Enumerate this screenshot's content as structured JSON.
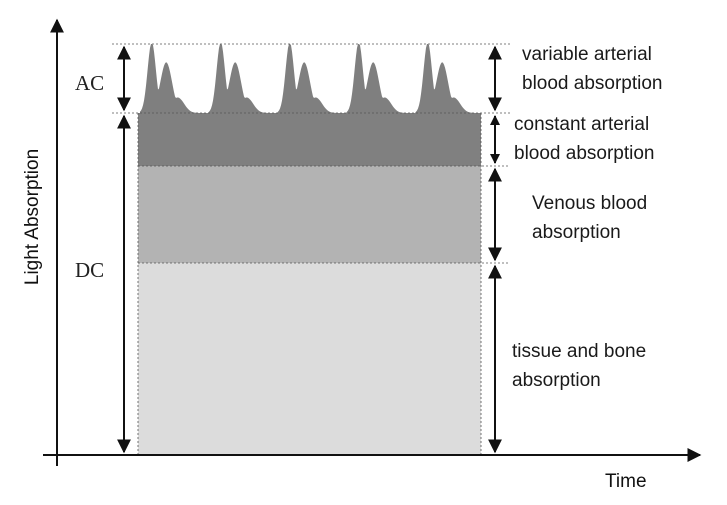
{
  "axes": {
    "y_title": "Light Absorption",
    "x_title": "Time"
  },
  "side_labels": {
    "ac": "AC",
    "dc": "DC"
  },
  "layers": [
    {
      "id": "variable",
      "line1": "variable arterial",
      "line2": "blood absorption",
      "color": "#7f7f7f"
    },
    {
      "id": "constant-arterial",
      "line1": "constant arterial",
      "line2": "blood absorption",
      "color": "#808080"
    },
    {
      "id": "venous",
      "line1": "Venous blood",
      "line2": "absorption",
      "color": "#b3b3b3"
    },
    {
      "id": "tissue",
      "line1": "tissue and bone",
      "line2": "absorption",
      "color": "#dcdcdc"
    }
  ]
}
